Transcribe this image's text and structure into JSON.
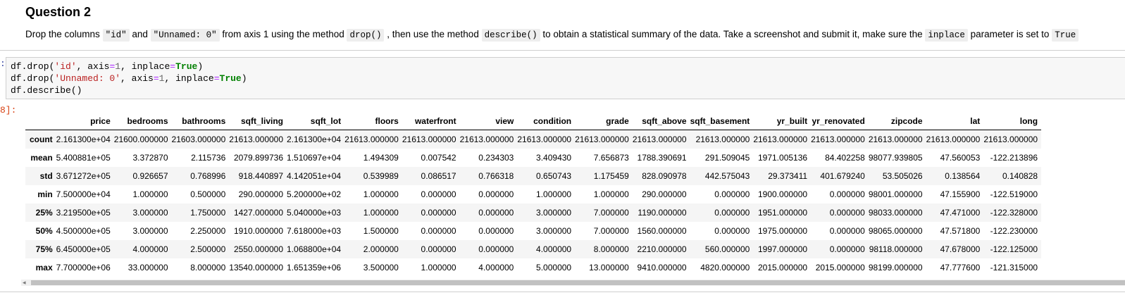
{
  "question": {
    "title": "Question 2",
    "text": [
      {
        "t": "Drop the columns "
      },
      {
        "c": "\"id\""
      },
      {
        "t": " and "
      },
      {
        "c": "\"Unnamed: 0\""
      },
      {
        "t": " from axis 1 using the method "
      },
      {
        "c": "drop()"
      },
      {
        "t": " , then use the method "
      },
      {
        "c": "describe()"
      },
      {
        "t": " to obtain a statistical summary of the data. Take a screenshot and submit it, make sure the "
      },
      {
        "c": "inplace"
      },
      {
        "t": " parameter is set to "
      },
      {
        "c": "True"
      }
    ]
  },
  "cell": {
    "in_prompt": ":",
    "out_prompt": "8]:",
    "code_lines": [
      [
        [
          "n",
          "df.drop("
        ],
        [
          "s",
          "'id'"
        ],
        [
          "n",
          ", axis"
        ],
        [
          "o",
          "="
        ],
        [
          "m",
          "1"
        ],
        [
          "n",
          ", inplace"
        ],
        [
          "o",
          "="
        ],
        [
          "k",
          "True"
        ],
        [
          "n",
          ")"
        ]
      ],
      [
        [
          "n",
          "df.drop("
        ],
        [
          "s",
          "'Unnamed: 0'"
        ],
        [
          "n",
          ", axis"
        ],
        [
          "o",
          "="
        ],
        [
          "m",
          "1"
        ],
        [
          "n",
          ", inplace"
        ],
        [
          "o",
          "="
        ],
        [
          "k",
          "True"
        ],
        [
          "n",
          ")"
        ]
      ],
      [
        [
          "n",
          "df.describe()"
        ]
      ]
    ]
  },
  "table": {
    "columns": [
      "price",
      "bedrooms",
      "bathrooms",
      "sqft_living",
      "sqft_lot",
      "floors",
      "waterfront",
      "view",
      "condition",
      "grade",
      "sqft_above",
      "sqft_basement",
      "yr_built",
      "yr_renovated",
      "zipcode",
      "lat",
      "long"
    ],
    "rows": [
      {
        "label": "count",
        "values": [
          "2.161300e+04",
          "21600.000000",
          "21603.000000",
          "21613.000000",
          "2.161300e+04",
          "21613.000000",
          "21613.000000",
          "21613.000000",
          "21613.000000",
          "21613.000000",
          "21613.000000",
          "21613.000000",
          "21613.000000",
          "21613.000000",
          "21613.000000",
          "21613.000000",
          "21613.000000"
        ]
      },
      {
        "label": "mean",
        "values": [
          "5.400881e+05",
          "3.372870",
          "2.115736",
          "2079.899736",
          "1.510697e+04",
          "1.494309",
          "0.007542",
          "0.234303",
          "3.409430",
          "7.656873",
          "1788.390691",
          "291.509045",
          "1971.005136",
          "84.402258",
          "98077.939805",
          "47.560053",
          "-122.213896"
        ]
      },
      {
        "label": "std",
        "values": [
          "3.671272e+05",
          "0.926657",
          "0.768996",
          "918.440897",
          "4.142051e+04",
          "0.539989",
          "0.086517",
          "0.766318",
          "0.650743",
          "1.175459",
          "828.090978",
          "442.575043",
          "29.373411",
          "401.679240",
          "53.505026",
          "0.138564",
          "0.140828"
        ]
      },
      {
        "label": "min",
        "values": [
          "7.500000e+04",
          "1.000000",
          "0.500000",
          "290.000000",
          "5.200000e+02",
          "1.000000",
          "0.000000",
          "0.000000",
          "1.000000",
          "1.000000",
          "290.000000",
          "0.000000",
          "1900.000000",
          "0.000000",
          "98001.000000",
          "47.155900",
          "-122.519000"
        ]
      },
      {
        "label": "25%",
        "values": [
          "3.219500e+05",
          "3.000000",
          "1.750000",
          "1427.000000",
          "5.040000e+03",
          "1.000000",
          "0.000000",
          "0.000000",
          "3.000000",
          "7.000000",
          "1190.000000",
          "0.000000",
          "1951.000000",
          "0.000000",
          "98033.000000",
          "47.471000",
          "-122.328000"
        ]
      },
      {
        "label": "50%",
        "values": [
          "4.500000e+05",
          "3.000000",
          "2.250000",
          "1910.000000",
          "7.618000e+03",
          "1.500000",
          "0.000000",
          "0.000000",
          "3.000000",
          "7.000000",
          "1560.000000",
          "0.000000",
          "1975.000000",
          "0.000000",
          "98065.000000",
          "47.571800",
          "-122.230000"
        ]
      },
      {
        "label": "75%",
        "values": [
          "6.450000e+05",
          "4.000000",
          "2.500000",
          "2550.000000",
          "1.068800e+04",
          "2.000000",
          "0.000000",
          "0.000000",
          "4.000000",
          "8.000000",
          "2210.000000",
          "560.000000",
          "1997.000000",
          "0.000000",
          "98118.000000",
          "47.678000",
          "-122.125000"
        ]
      },
      {
        "label": "max",
        "values": [
          "7.700000e+06",
          "33.000000",
          "8.000000",
          "13540.000000",
          "1.651359e+06",
          "3.500000",
          "1.000000",
          "4.000000",
          "5.000000",
          "13.000000",
          "9410.000000",
          "4820.000000",
          "2015.000000",
          "2015.000000",
          "98199.000000",
          "47.777600",
          "-121.315000"
        ]
      }
    ]
  },
  "scrollbar": {
    "left_arrow": "◂"
  }
}
